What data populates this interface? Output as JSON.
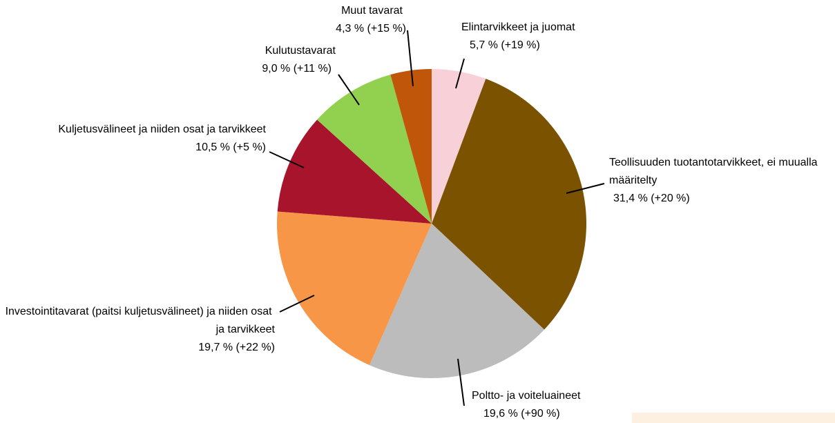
{
  "chart_data": {
    "type": "pie",
    "categories": [
      "Elintarvikkeet ja juomat",
      "Teollisuuden tuotantotarvikkeet, ei muualla määritelty",
      "Poltto- ja voiteluaineet",
      "Investointitavarat (paitsi kuljetusvälineet) ja niiden osat ja tarvikkeet",
      "Kuljetusvälineet ja niiden osat ja tarvikkeet",
      "Kulutustavarat",
      "Muut tavarat"
    ],
    "values": [
      5.7,
      31.4,
      19.6,
      19.7,
      10.5,
      9.0,
      4.3
    ],
    "value_labels": [
      "5,7 % (+19 %)",
      "31,4 % (+20 %)",
      "19,6 % (+90 %)",
      "19,7 % (+22 %)",
      "10,5 % (+5 %)",
      "9,0 % (+11 %)",
      "4,3 % (+15 %)"
    ],
    "colors": [
      "#f8d0d8",
      "#7a5200",
      "#bcbcbc",
      "#f79646",
      "#a8142c",
      "#92d050",
      "#c0560a"
    ]
  }
}
